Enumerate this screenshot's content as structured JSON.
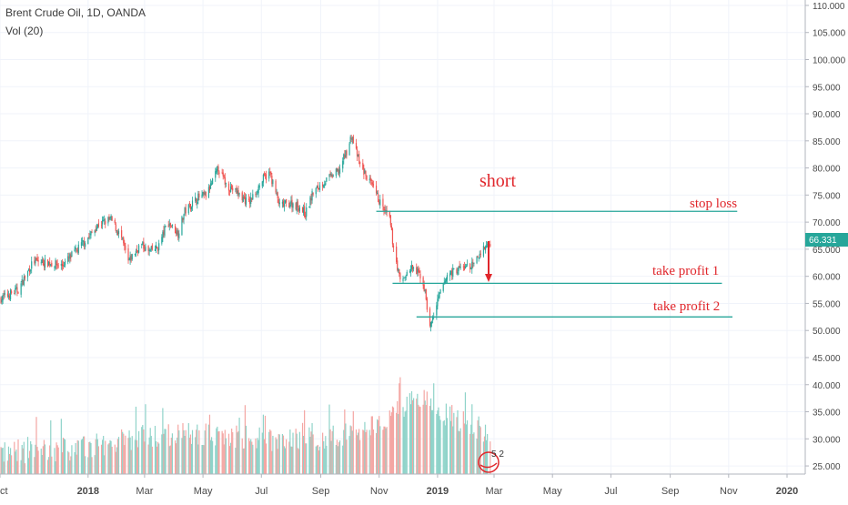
{
  "legend": {
    "title": "Brent Crude Oil, 1D, OANDA",
    "volume_label": "Vol (20)"
  },
  "price_badge": "66.331",
  "vol_badge": "5 2",
  "colors": {
    "up": "#26a69a",
    "down": "#ef5350",
    "vol_up": "#8fd3c9",
    "vol_down": "#f4a6a3",
    "level_line": "#26a69a",
    "annotation": "#e0262b",
    "axis_text": "#4a4a4a",
    "grid": "#f0f3fa"
  },
  "annotations": {
    "short": "short",
    "stop_loss": "stop loss",
    "take_profit_1": "take profit 1",
    "take_profit_2": "take profit 2"
  },
  "chart_data": {
    "type": "candlestick",
    "symbol": "Brent Crude Oil",
    "interval": "1D",
    "source": "OANDA",
    "y_axis": {
      "position": "right",
      "ylim": [
        23.5,
        111
      ],
      "ticks": [
        "110.000",
        "105.000",
        "100.000",
        "95.000",
        "90.000",
        "85.000",
        "80.000",
        "75.000",
        "70.000",
        "65.000",
        "60.000",
        "55.000",
        "50.000",
        "45.000",
        "40.000",
        "35.000",
        "30.000",
        "25.000"
      ],
      "tick_values": [
        110,
        105,
        100,
        95,
        90,
        85,
        80,
        75,
        70,
        65,
        60,
        55,
        50,
        45,
        40,
        35,
        30,
        25
      ]
    },
    "x_axis": {
      "xlim": [
        "2017-10-01",
        "2020-01-20"
      ],
      "tick_labels": [
        "ct",
        "2018",
        "Mar",
        "May",
        "Jul",
        "Sep",
        "Nov",
        "2019",
        "Mar",
        "May",
        "Jul",
        "Sep",
        "Nov",
        "2020"
      ],
      "tick_dates": [
        "2017-10-01",
        "2018-01-01",
        "2018-03-01",
        "2018-05-01",
        "2018-07-01",
        "2018-09-01",
        "2018-11-01",
        "2019-01-01",
        "2019-03-01",
        "2019-05-01",
        "2019-07-01",
        "2019-09-01",
        "2019-11-01",
        "2020-01-01"
      ]
    },
    "close_path": [
      [
        "2017-10-01",
        55.8
      ],
      [
        "2017-10-20",
        57.5
      ],
      [
        "2017-11-05",
        62.8
      ],
      [
        "2017-11-20",
        62.5
      ],
      [
        "2017-12-05",
        62.0
      ],
      [
        "2017-12-20",
        64.8
      ],
      [
        "2018-01-05",
        68.0
      ],
      [
        "2018-01-12",
        69.6
      ],
      [
        "2018-01-25",
        70.5
      ],
      [
        "2018-02-05",
        67.0
      ],
      [
        "2018-02-12",
        62.6
      ],
      [
        "2018-02-25",
        66.0
      ],
      [
        "2018-03-05",
        64.5
      ],
      [
        "2018-03-15",
        65.3
      ],
      [
        "2018-03-25",
        70.0
      ],
      [
        "2018-04-05",
        68.0
      ],
      [
        "2018-04-12",
        72.0
      ],
      [
        "2018-04-25",
        74.5
      ],
      [
        "2018-05-05",
        75.0
      ],
      [
        "2018-05-17",
        80.0
      ],
      [
        "2018-05-25",
        77.0
      ],
      [
        "2018-06-05",
        75.5
      ],
      [
        "2018-06-18",
        73.5
      ],
      [
        "2018-07-03",
        78.0
      ],
      [
        "2018-07-10",
        79.0
      ],
      [
        "2018-07-20",
        73.0
      ],
      [
        "2018-08-01",
        73.5
      ],
      [
        "2018-08-10",
        72.8
      ],
      [
        "2018-08-16",
        71.5
      ],
      [
        "2018-08-24",
        75.5
      ],
      [
        "2018-09-05",
        77.5
      ],
      [
        "2018-09-20",
        79.5
      ],
      [
        "2018-10-01",
        84.5
      ],
      [
        "2018-10-03",
        86.0
      ],
      [
        "2018-10-12",
        80.5
      ],
      [
        "2018-10-25",
        76.5
      ],
      [
        "2018-11-05",
        72.5
      ],
      [
        "2018-11-12",
        70.5
      ],
      [
        "2018-11-15",
        66.5
      ],
      [
        "2018-11-23",
        59.0
      ],
      [
        "2018-12-05",
        61.5
      ],
      [
        "2018-12-15",
        60.0
      ],
      [
        "2018-12-19",
        57.0
      ],
      [
        "2018-12-24",
        50.5
      ],
      [
        "2019-01-04",
        57.0
      ],
      [
        "2019-01-12",
        60.5
      ],
      [
        "2019-01-25",
        61.5
      ],
      [
        "2019-02-08",
        62.0
      ],
      [
        "2019-02-15",
        64.5
      ],
      [
        "2019-02-25",
        66.3
      ]
    ],
    "volume_ylim": [
      24.5,
      45
    ],
    "volume_trend": [
      [
        "2017-10-01",
        28.0
      ],
      [
        "2018-01-01",
        29.0
      ],
      [
        "2018-03-01",
        31.0
      ],
      [
        "2018-05-01",
        31.5
      ],
      [
        "2018-07-01",
        30.5
      ],
      [
        "2018-09-01",
        30.5
      ],
      [
        "2018-10-15",
        32.0
      ],
      [
        "2018-11-20",
        36.0
      ],
      [
        "2018-12-15",
        38.0
      ],
      [
        "2019-01-05",
        35.5
      ],
      [
        "2019-02-01",
        33.5
      ],
      [
        "2019-02-25",
        31.5
      ]
    ],
    "levels": [
      {
        "name": "stop loss",
        "price": 72.0,
        "from": "2018-10-29",
        "to": "2019-11-10"
      },
      {
        "name": "take profit 1",
        "price": 58.7,
        "from": "2018-11-15",
        "to": "2019-10-25"
      },
      {
        "name": "take profit 2",
        "price": 52.5,
        "from": "2018-12-10",
        "to": "2019-11-05"
      }
    ],
    "last_price": 66.331
  }
}
